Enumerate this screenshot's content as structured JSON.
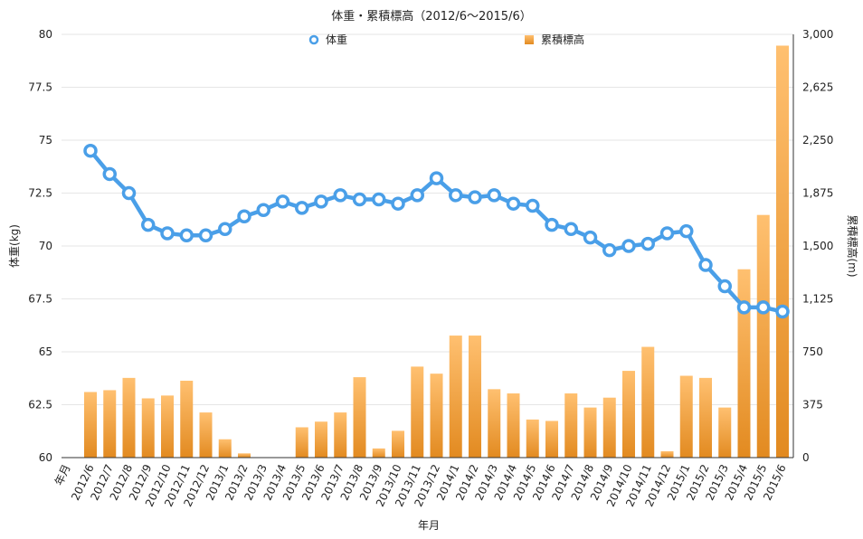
{
  "chart_data": {
    "type": "bar+line",
    "title": "体重・累積標高（2012/6〜2015/6）",
    "xlabel": "年月",
    "ylabel_left": "体重(kg)",
    "ylabel_right": "累積標高(m)",
    "x_axis_first_tick": "年月",
    "categories": [
      "2012/6",
      "2012/7",
      "2012/8",
      "2012/9",
      "2012/10",
      "2012/11",
      "2012/12",
      "2013/1",
      "2013/2",
      "2013/3",
      "2013/4",
      "2013/5",
      "2013/6",
      "2013/7",
      "2013/8",
      "2013/9",
      "2013/10",
      "2013/11",
      "2013/12",
      "2014/1",
      "2014/2",
      "2014/3",
      "2014/4",
      "2014/5",
      "2014/6",
      "2014/7",
      "2014/8",
      "2014/9",
      "2014/10",
      "2014/11",
      "2014/12",
      "2015/1",
      "2015/2",
      "2015/3",
      "2015/4",
      "2015/5",
      "2015/6"
    ],
    "y_left": {
      "min": 60,
      "max": 80,
      "ticks": [
        "60",
        "62.5",
        "65",
        "67.5",
        "70",
        "72.5",
        "75",
        "77.5",
        "80"
      ]
    },
    "y_right": {
      "min": 0,
      "max": 3000,
      "ticks": [
        "0",
        "375",
        "750",
        "1,125",
        "1,500",
        "1,875",
        "2,250",
        "2,625",
        "3,000"
      ]
    },
    "grid": true,
    "legend_position": "top-center",
    "series": [
      {
        "name": "体重",
        "kind": "line",
        "axis": "left",
        "color": "#4a9fe8",
        "values": [
          74.5,
          73.4,
          72.5,
          71.0,
          70.6,
          70.5,
          70.5,
          70.8,
          71.4,
          71.7,
          72.1,
          71.8,
          72.1,
          72.4,
          72.2,
          72.2,
          72.0,
          72.4,
          73.2,
          72.4,
          72.3,
          72.4,
          72.0,
          71.9,
          71.0,
          70.8,
          70.4,
          69.8,
          70.0,
          70.1,
          70.6,
          70.7,
          69.1,
          68.1,
          67.1,
          67.1,
          66.9
        ]
      },
      {
        "name": "累積標高",
        "kind": "bar",
        "axis": "right",
        "color": "#f0a040",
        "values": [
          465,
          478,
          565,
          420,
          440,
          545,
          320,
          130,
          30,
          0,
          0,
          215,
          255,
          320,
          570,
          65,
          190,
          645,
          595,
          865,
          865,
          485,
          455,
          270,
          260,
          455,
          355,
          425,
          615,
          785,
          45,
          580,
          565,
          355,
          1335,
          1720,
          2920
        ]
      }
    ]
  }
}
